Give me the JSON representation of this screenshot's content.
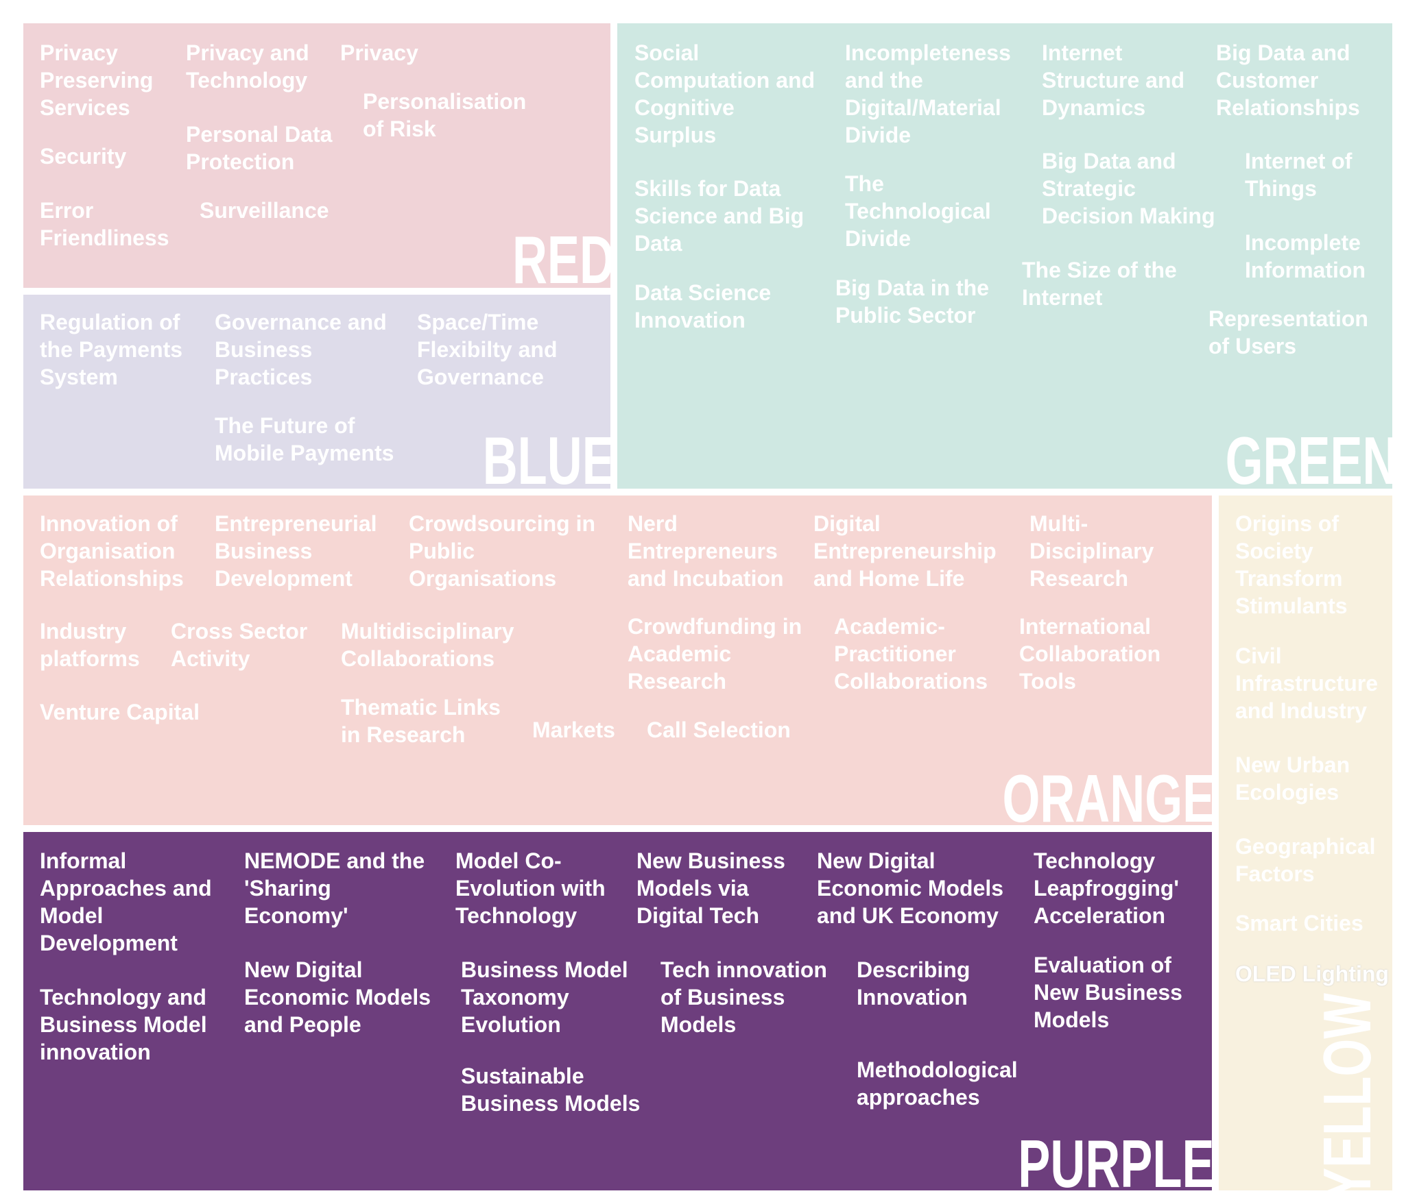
{
  "colors": {
    "red": "#f0d3d7",
    "blue": "#dedcea",
    "green": "#cfe8e2",
    "orange": "#f6d7d4",
    "purple": "#6d3e7d",
    "yellow": "#f8f1df"
  },
  "red": {
    "title": "RED",
    "items": [
      "Privacy\nPreserving\nServices",
      "Privacy and\nTechnology",
      "Privacy",
      "Personalisation\nof Risk",
      "Security",
      "Personal Data\nProtection",
      "Error\nFriendliness",
      "Surveillance"
    ]
  },
  "blue": {
    "title": "BLUE",
    "items": [
      "Regulation of\nthe Payments\nSystem",
      "Governance and\nBusiness\nPractices",
      "Space/Time\nFlexibilty and\nGovernance",
      "The Future of\nMobile Payments"
    ]
  },
  "green": {
    "title": "GREEN",
    "items": [
      "Social\nComputation and\nCognitive\nSurplus",
      "Incompleteness\nand the\nDigital/Material\nDivide",
      "Internet\nStructure and\nDynamics",
      "Big Data and\nCustomer\nRelationships",
      "Big Data and\nStrategic\nDecision Making",
      "Internet of\nThings",
      "Skills for Data\nScience and Big\nData",
      "The\nTechnological\nDivide",
      "Incomplete\nInformation",
      "The Size of the\nInternet",
      "Data Science\nInnovation",
      "Big Data in the\nPublic Sector",
      "Representation\nof Users"
    ]
  },
  "orange": {
    "title": "ORANGE",
    "items": [
      "Innovation of\nOrganisation\nRelationships",
      "Entrepreneurial\nBusiness\nDevelopment",
      "Crowdsourcing in\nPublic\nOrganisations",
      "Nerd\nEntrepreneurs\nand Incubation",
      "Digital\nEntrepreneurship\nand Home Life",
      "Multi-\nDisciplinary\nResearch",
      "Industry\nplatforms",
      "Cross Sector\nActivity",
      "Multidisciplinary\nCollaborations",
      "Crowdfunding in\nAcademic\nResearch",
      "Academic-\nPractitioner\nCollaborations",
      "International\nCollaboration\nTools",
      "Venture Capital",
      "Thematic Links\nin Research",
      "Markets",
      "Call Selection"
    ]
  },
  "purple": {
    "title": "PURPLE",
    "items": [
      "Informal\nApproaches and\nModel\nDevelopment",
      "NEMODE and the\n'Sharing\nEconomy'",
      "Model Co-\nEvolution with\nTechnology",
      "New Business\nModels via\nDigital Tech",
      "New Digital\nEconomic Models\nand UK Economy",
      "Technology\nLeapfrogging'\nAcceleration",
      "Evaluation of\nNew Business\nModels",
      "New Digital\nEconomic Models\nand People",
      "Business Model\nTaxonomy\nEvolution",
      "Tech innovation\nof Business\nModels",
      "Describing\nInnovation",
      "Technology and\nBusiness Model\ninnovation",
      "Sustainable\nBusiness Models",
      "Methodological\napproaches"
    ]
  },
  "yellow": {
    "title": "YELLOW",
    "items": [
      "Origins of\nSociety\nTransform\nStimulants",
      "Civil\nInfrastructure\nand Industry",
      "New Urban\nEcologies",
      "Geographical\nFactors",
      "Smart Cities",
      "OLED Lighting"
    ]
  }
}
